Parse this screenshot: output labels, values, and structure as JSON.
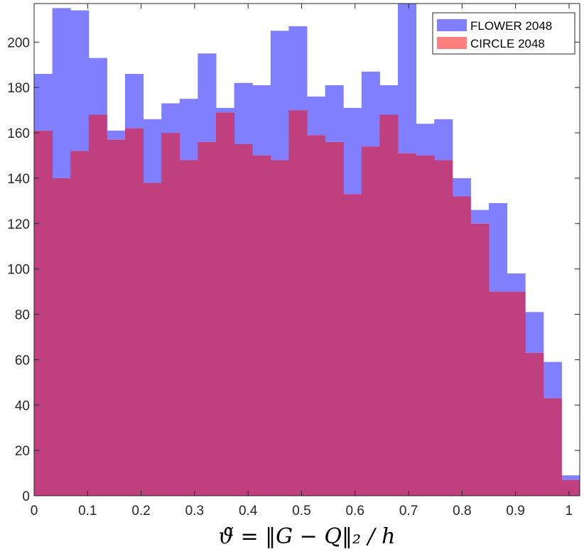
{
  "chart_data": {
    "type": "bar",
    "subtype": "overlapping-histogram",
    "title": "",
    "xlabel": "ϑ̃ = ‖G − Q‖₂ / h",
    "ylabel": "",
    "xlim": [
      0,
      1.02
    ],
    "ylim": [
      0,
      217
    ],
    "x_ticks": [
      0,
      0.1,
      0.2,
      0.3,
      0.4,
      0.5,
      0.6,
      0.7,
      0.8,
      0.9,
      1
    ],
    "x_tick_labels": [
      "0",
      "0.1",
      "0.2",
      "0.3",
      "0.4",
      "0.5",
      "0.6",
      "0.7",
      "0.8",
      "0.9",
      "1"
    ],
    "y_ticks": [
      0,
      20,
      40,
      60,
      80,
      100,
      120,
      140,
      160,
      180,
      200
    ],
    "y_tick_labels": [
      "0",
      "20",
      "40",
      "60",
      "80",
      "100",
      "120",
      "140",
      "160",
      "180",
      "200"
    ],
    "bin_width": 0.034,
    "bin_edges_start": 0,
    "grid": false,
    "legend_position": "top-right",
    "series": [
      {
        "name": "FLOWER 2048",
        "color": "#7f7fff",
        "values": [
          186,
          215,
          214,
          193,
          161,
          186,
          166,
          173,
          175,
          195,
          171,
          182,
          181,
          205,
          207,
          176,
          181,
          171,
          187,
          181,
          220,
          164,
          166,
          140,
          126,
          129,
          98,
          81,
          59,
          9
        ]
      },
      {
        "name": "CIRCLE 2048",
        "color": "#ff7f7f",
        "values": [
          161,
          140,
          152,
          168,
          157,
          162,
          138,
          160,
          148,
          156,
          169,
          155,
          150,
          148,
          170,
          159,
          156,
          133,
          154,
          168,
          151,
          150,
          148,
          132,
          120,
          90,
          90,
          63,
          43,
          7
        ]
      }
    ],
    "overlap_color": "#bf3f7f"
  }
}
